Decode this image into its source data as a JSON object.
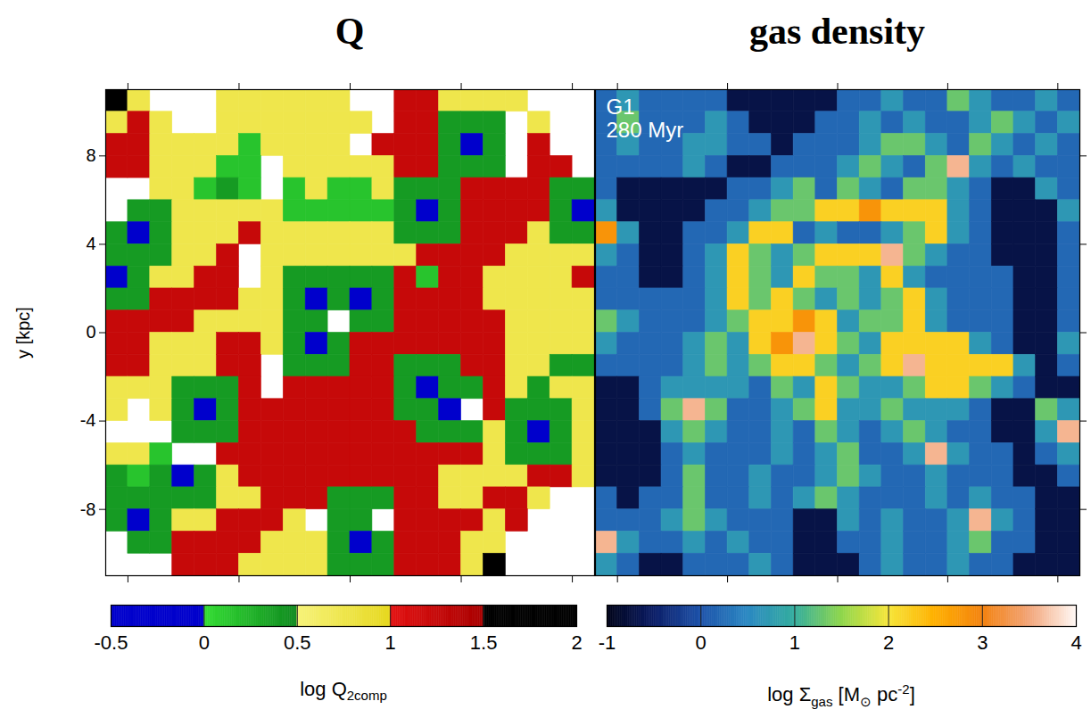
{
  "chart_data": [
    {
      "type": "heatmap",
      "title": "Q",
      "ylabel": "y [kpc]",
      "tick_labels": "y",
      "xlim": [
        -11,
        11
      ],
      "ylim": [
        -11,
        11
      ],
      "xticks": [
        -10,
        -5,
        0,
        5,
        10
      ],
      "yticks": [
        -8,
        -4,
        0,
        4,
        8
      ],
      "xbins": [
        -11,
        -10,
        -9,
        -8,
        -7,
        -6,
        -5,
        -4,
        -3,
        -2,
        -1,
        0,
        1,
        2,
        3,
        4,
        5,
        6,
        7,
        8,
        9,
        10,
        11
      ],
      "ybins": [
        11,
        10,
        9,
        8,
        7,
        6,
        5,
        4,
        3,
        2,
        1,
        0,
        -1,
        -2,
        -3,
        -4,
        -5,
        -6,
        -7,
        -8,
        -9,
        -10,
        -11
      ],
      "cells": [
        [
          1.7,
          0.75,
          null,
          null,
          null,
          0.75,
          0.75,
          0.75,
          0.75,
          0.75,
          0.75,
          null,
          null,
          1.25,
          1.25,
          0.75,
          0.75,
          0.75,
          0.75,
          null,
          null,
          null
        ],
        [
          0.75,
          1.25,
          0.75,
          null,
          null,
          0.75,
          0.75,
          0.75,
          0.75,
          0.75,
          0.75,
          0.75,
          null,
          1.25,
          1.25,
          0.4,
          0.4,
          0.4,
          null,
          0.75,
          null,
          null
        ],
        [
          1.25,
          1.25,
          0.75,
          0.75,
          0.75,
          0.75,
          0.15,
          0.75,
          0.75,
          0.75,
          0.75,
          null,
          1.25,
          1.25,
          1.25,
          0.4,
          -0.3,
          0.4,
          null,
          1.25,
          null,
          null
        ],
        [
          1.25,
          1.25,
          0.75,
          0.75,
          0.75,
          0.15,
          0.15,
          null,
          0.75,
          0.75,
          0.75,
          0.75,
          0.75,
          1.25,
          1.25,
          0.4,
          0.4,
          0.4,
          null,
          1.25,
          1.25,
          null
        ],
        [
          null,
          null,
          0.75,
          0.75,
          0.15,
          0.4,
          0.15,
          null,
          0.15,
          0.75,
          0.15,
          0.15,
          0.75,
          0.4,
          0.4,
          0.4,
          1.25,
          1.25,
          1.25,
          1.25,
          0.4,
          0.4
        ],
        [
          null,
          0.4,
          0.4,
          0.75,
          0.75,
          0.75,
          0.75,
          0.75,
          0.15,
          0.15,
          0.15,
          0.15,
          0.15,
          0.4,
          -0.3,
          0.4,
          1.25,
          1.25,
          1.25,
          1.25,
          0.4,
          -0.3
        ],
        [
          0.4,
          -0.3,
          0.4,
          0.75,
          0.75,
          0.75,
          1.25,
          0.75,
          0.75,
          0.75,
          0.75,
          0.75,
          0.75,
          0.4,
          0.4,
          0.4,
          1.25,
          1.25,
          1.25,
          0.75,
          0.4,
          0.4
        ],
        [
          0.4,
          0.4,
          0.4,
          0.75,
          0.75,
          1.25,
          null,
          0.75,
          0.75,
          0.75,
          0.75,
          0.75,
          0.75,
          0.75,
          1.25,
          1.25,
          1.25,
          1.25,
          0.75,
          0.75,
          0.75,
          0.75
        ],
        [
          -0.3,
          0.4,
          0.75,
          0.75,
          1.25,
          1.25,
          null,
          0.75,
          0.4,
          0.4,
          0.4,
          0.4,
          0.4,
          1.25,
          0.15,
          1.25,
          1.25,
          0.75,
          0.75,
          0.75,
          0.75,
          1.25
        ],
        [
          0.4,
          0.4,
          1.25,
          1.25,
          1.25,
          1.25,
          0.75,
          0.75,
          0.4,
          -0.3,
          0.4,
          -0.3,
          0.4,
          1.25,
          1.25,
          1.25,
          1.25,
          0.75,
          0.75,
          0.75,
          0.75,
          0.75
        ],
        [
          1.25,
          1.25,
          1.25,
          1.25,
          0.75,
          0.75,
          0.75,
          0.75,
          0.4,
          0.4,
          null,
          0.4,
          0.4,
          1.25,
          1.25,
          1.25,
          1.25,
          1.25,
          0.75,
          0.75,
          0.75,
          0.75
        ],
        [
          1.25,
          1.25,
          0.75,
          0.75,
          0.75,
          1.25,
          1.25,
          0.75,
          0.4,
          -0.3,
          0.4,
          1.25,
          1.25,
          1.25,
          1.25,
          1.25,
          1.25,
          1.25,
          0.75,
          0.75,
          0.75,
          0.75
        ],
        [
          1.25,
          1.25,
          0.75,
          0.75,
          0.75,
          1.25,
          1.25,
          null,
          0.4,
          0.4,
          0.4,
          1.25,
          1.25,
          0.4,
          0.4,
          0.4,
          1.25,
          1.25,
          0.75,
          0.75,
          0.4,
          0.4
        ],
        [
          0.75,
          0.75,
          0.75,
          0.4,
          0.4,
          0.4,
          1.25,
          null,
          1.25,
          1.25,
          1.25,
          1.25,
          1.25,
          0.4,
          -0.3,
          0.4,
          0.4,
          1.25,
          0.75,
          0.4,
          0.75,
          0.75
        ],
        [
          0.75,
          null,
          0.75,
          0.4,
          -0.3,
          0.4,
          1.25,
          1.25,
          1.25,
          1.25,
          1.25,
          1.25,
          1.25,
          0.4,
          0.4,
          -0.3,
          null,
          1.25,
          0.4,
          0.4,
          0.4,
          0.75
        ],
        [
          null,
          null,
          null,
          0.4,
          0.4,
          0.4,
          1.25,
          1.25,
          1.25,
          1.25,
          1.25,
          1.25,
          1.25,
          1.25,
          0.4,
          0.4,
          0.4,
          0.75,
          0.4,
          -0.3,
          0.4,
          0.75
        ],
        [
          0.75,
          0.75,
          0.15,
          null,
          null,
          1.25,
          1.25,
          1.25,
          1.25,
          1.25,
          1.25,
          1.25,
          1.25,
          1.25,
          1.25,
          1.25,
          1.25,
          0.75,
          0.4,
          0.4,
          0.4,
          0.75
        ],
        [
          0.4,
          0.15,
          0.4,
          -0.3,
          0.4,
          0.75,
          1.25,
          1.25,
          1.25,
          1.25,
          1.25,
          1.25,
          1.25,
          1.25,
          1.25,
          0.75,
          0.75,
          0.75,
          0.75,
          1.25,
          1.25,
          0.75
        ],
        [
          0.4,
          0.4,
          0.4,
          0.4,
          0.4,
          0.75,
          0.75,
          1.25,
          1.25,
          1.25,
          0.4,
          0.4,
          0.4,
          1.25,
          1.25,
          0.75,
          0.75,
          1.25,
          1.25,
          0.75,
          null,
          null
        ],
        [
          0.4,
          -0.3,
          0.4,
          0.75,
          0.75,
          1.25,
          1.25,
          1.25,
          0.75,
          null,
          0.4,
          0.4,
          null,
          1.25,
          1.25,
          1.25,
          1.25,
          0.75,
          1.25,
          null,
          null,
          null
        ],
        [
          null,
          0.4,
          0.4,
          1.25,
          1.25,
          1.25,
          1.25,
          0.75,
          0.75,
          0.75,
          0.4,
          -0.3,
          0.4,
          1.25,
          1.25,
          1.25,
          0.75,
          0.75,
          null,
          null,
          null,
          null
        ],
        [
          null,
          null,
          null,
          1.25,
          1.25,
          1.25,
          0.75,
          0.75,
          0.75,
          0.75,
          0.4,
          0.4,
          0.4,
          1.25,
          1.25,
          1.25,
          0.75,
          1.7,
          null,
          null,
          null,
          null
        ]
      ],
      "colorbar": {
        "label": [
          {
            "text": "log Q"
          },
          {
            "text": "2comp",
            "sub": true
          }
        ],
        "range": [
          -0.5,
          2
        ],
        "ticks": [
          -0.5,
          0,
          0.5,
          1,
          1.5,
          2
        ]
      }
    },
    {
      "type": "heatmap",
      "title": "gas density",
      "annotations": [
        "G1",
        "280 Myr"
      ],
      "tick_labels": false,
      "xlim": [
        -11,
        11
      ],
      "ylim": [
        -11,
        11
      ],
      "xticks": [
        -10,
        -5,
        0,
        5,
        10
      ],
      "yticks": [
        -8,
        -4,
        0,
        4,
        8
      ],
      "xbins": [
        -11,
        -10,
        -9,
        -8,
        -7,
        -6,
        -5,
        -4,
        -3,
        -2,
        -1,
        0,
        1,
        2,
        3,
        4,
        5,
        6,
        7,
        8,
        9,
        10,
        11
      ],
      "ybins": [
        11,
        10,
        9,
        8,
        7,
        6,
        5,
        4,
        3,
        2,
        1,
        0,
        -1,
        -2,
        -3,
        -4,
        -5,
        -6,
        -7,
        -8,
        -9,
        -10,
        -11
      ],
      "cells": [
        [
          0.2,
          0.7,
          0.2,
          0.2,
          0.2,
          0.2,
          -0.7,
          -0.7,
          -0.7,
          -0.7,
          -0.7,
          0.2,
          0.2,
          0.7,
          0.2,
          0.2,
          1.3,
          0.7,
          0.2,
          0.2,
          0.7,
          0.2
        ],
        [
          0.2,
          1.3,
          0.2,
          0.2,
          0.2,
          0.7,
          0.2,
          -0.7,
          -0.7,
          -0.7,
          0.2,
          0.2,
          0.7,
          0.2,
          0.7,
          0.2,
          0.2,
          0.7,
          1.3,
          0.7,
          0.2,
          0.7
        ],
        [
          0.2,
          0.7,
          0.2,
          0.2,
          0.7,
          0.7,
          0.2,
          0.2,
          -0.7,
          0.2,
          0.2,
          0.2,
          0.7,
          1.3,
          1.3,
          0.7,
          0.2,
          1.3,
          0.7,
          0.2,
          0.7,
          0.2
        ],
        [
          0.2,
          0.2,
          0.2,
          0.2,
          0.7,
          0.2,
          -0.7,
          -0.7,
          0.2,
          0.2,
          0.2,
          0.7,
          1.3,
          0.7,
          0.2,
          1.3,
          3.6,
          0.7,
          0.2,
          0.7,
          0.2,
          0.2
        ],
        [
          0.2,
          -0.7,
          -0.7,
          -0.7,
          -0.7,
          -0.7,
          0.2,
          0.2,
          0.7,
          1.3,
          0.2,
          1.3,
          0.7,
          0.2,
          1.3,
          1.3,
          0.7,
          0.2,
          -0.7,
          -0.7,
          0.7,
          0.2
        ],
        [
          0.7,
          -0.7,
          -0.7,
          -0.7,
          -0.7,
          0.2,
          0.2,
          0.7,
          1.3,
          1.3,
          2.2,
          2.2,
          2.8,
          2.2,
          2.2,
          2.2,
          0.7,
          0.2,
          -0.7,
          -0.7,
          -0.7,
          0.7
        ],
        [
          2.8,
          0.7,
          -0.7,
          -0.7,
          0.2,
          0.2,
          0.7,
          2.2,
          2.2,
          0.2,
          0.7,
          0.2,
          0.2,
          0.7,
          1.3,
          2.2,
          0.7,
          0.2,
          -0.7,
          -0.7,
          -0.7,
          0.2
        ],
        [
          0.7,
          0.2,
          -0.7,
          -0.7,
          0.2,
          0.7,
          2.2,
          1.3,
          0.7,
          1.3,
          2.2,
          2.2,
          2.2,
          3.6,
          1.3,
          0.7,
          0.2,
          0.2,
          -0.7,
          -0.7,
          -0.7,
          0.2
        ],
        [
          0.2,
          0.2,
          -0.7,
          -0.7,
          0.2,
          0.7,
          2.2,
          1.3,
          0.7,
          2.2,
          1.3,
          1.3,
          0.7,
          2.2,
          0.7,
          0.2,
          0.2,
          0.2,
          0.2,
          -0.7,
          -0.7,
          0.2
        ],
        [
          0.2,
          0.2,
          0.2,
          0.2,
          0.2,
          0.7,
          2.2,
          1.3,
          2.2,
          1.3,
          0.7,
          1.3,
          0.7,
          1.3,
          2.2,
          0.7,
          0.2,
          0.2,
          0.2,
          -0.7,
          -0.7,
          0.2
        ],
        [
          1.3,
          0.7,
          0.2,
          0.2,
          0.2,
          0.7,
          1.3,
          2.2,
          2.2,
          2.8,
          2.2,
          0.7,
          1.3,
          1.3,
          2.2,
          0.7,
          0.2,
          0.2,
          0.2,
          -0.7,
          -0.7,
          0.2
        ],
        [
          0.7,
          0.2,
          0.2,
          0.2,
          0.7,
          1.3,
          0.7,
          2.2,
          2.8,
          3.6,
          2.2,
          1.3,
          0.7,
          2.2,
          2.2,
          2.2,
          2.2,
          0.7,
          0.2,
          -0.7,
          -0.7,
          0.7
        ],
        [
          0.2,
          0.2,
          0.2,
          0.2,
          0.7,
          1.3,
          0.7,
          1.3,
          2.2,
          2.2,
          1.3,
          0.7,
          1.3,
          2.2,
          3.6,
          2.2,
          2.2,
          2.2,
          2.2,
          0.7,
          -0.7,
          0.2
        ],
        [
          -0.7,
          -0.7,
          0.2,
          0.7,
          0.7,
          0.7,
          0.7,
          0.2,
          1.3,
          0.7,
          2.2,
          1.3,
          0.7,
          0.7,
          1.3,
          2.2,
          2.2,
          1.3,
          0.7,
          0.2,
          -0.7,
          -0.7
        ],
        [
          -0.7,
          -0.7,
          0.2,
          1.3,
          3.6,
          1.3,
          0.2,
          0.2,
          0.7,
          1.3,
          2.2,
          0.7,
          0.7,
          1.3,
          0.7,
          0.7,
          0.7,
          0.2,
          -0.7,
          -0.7,
          1.3,
          0.7
        ],
        [
          -0.7,
          -0.7,
          -0.7,
          0.7,
          1.3,
          0.7,
          0.2,
          0.2,
          0.7,
          0.2,
          1.3,
          0.7,
          0.2,
          0.7,
          1.3,
          0.7,
          0.2,
          0.2,
          -0.7,
          -0.7,
          0.7,
          3.6
        ],
        [
          -0.7,
          -0.7,
          -0.7,
          0.2,
          0.7,
          0.2,
          0.2,
          0.2,
          0.7,
          0.2,
          0.7,
          1.3,
          0.2,
          0.2,
          0.7,
          3.6,
          0.7,
          0.2,
          0.2,
          -0.7,
          0.2,
          0.7
        ],
        [
          -0.7,
          -0.7,
          -0.7,
          0.2,
          1.3,
          0.2,
          0.2,
          0.7,
          0.2,
          0.2,
          0.7,
          1.3,
          0.7,
          0.2,
          0.2,
          0.7,
          0.2,
          0.2,
          0.2,
          -0.7,
          -0.7,
          0.2
        ],
        [
          0.2,
          -0.7,
          0.2,
          0.2,
          1.3,
          0.2,
          0.2,
          0.7,
          0.2,
          0.7,
          1.3,
          0.7,
          0.2,
          0.2,
          0.2,
          0.7,
          0.2,
          0.7,
          0.2,
          0.2,
          -0.7,
          -0.7
        ],
        [
          0.2,
          0.2,
          0.2,
          0.7,
          1.3,
          0.7,
          0.2,
          0.2,
          0.2,
          -0.7,
          -0.7,
          0.7,
          0.2,
          0.7,
          0.2,
          0.2,
          0.7,
          3.6,
          0.7,
          0.2,
          -0.7,
          -0.7
        ],
        [
          3.6,
          0.7,
          0.2,
          0.2,
          0.7,
          0.2,
          0.7,
          0.2,
          0.2,
          -0.7,
          -0.7,
          0.2,
          0.2,
          0.7,
          0.2,
          0.2,
          0.7,
          1.3,
          0.2,
          0.2,
          -0.7,
          -0.7
        ],
        [
          0.7,
          0.2,
          -0.7,
          -0.7,
          0.2,
          0.2,
          0.2,
          0.7,
          0.2,
          -0.7,
          -0.7,
          -0.7,
          0.2,
          0.7,
          0.2,
          0.2,
          0.7,
          0.2,
          0.2,
          -0.7,
          -0.7,
          -0.7
        ]
      ],
      "colorbar": {
        "label": [
          {
            "text": "log Σ"
          },
          {
            "text": "gas",
            "sub": true
          },
          {
            "text": " [M"
          },
          {
            "text": "⊙",
            "sub": true
          },
          {
            "text": " pc"
          },
          {
            "text": "-2",
            "sup": true
          },
          {
            "text": "]"
          }
        ],
        "range": [
          -1,
          4
        ],
        "ticks": [
          -1,
          0,
          1,
          2,
          3,
          4
        ]
      }
    }
  ]
}
